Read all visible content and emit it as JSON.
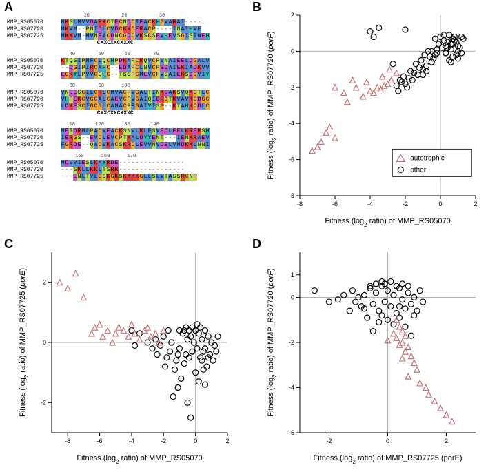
{
  "panel_labels": {
    "A": "A",
    "B": "B",
    "C": "C",
    "D": "D"
  },
  "alignment": {
    "names": [
      "MMP_RS05070",
      "MMP_RS07720",
      "MMP_RS07725"
    ],
    "motif1": "CXXCXXCXXXC",
    "motif2": "CXXCXXCXXXC",
    "ruler_positions": [
      10,
      20,
      30
    ],
    "blocks": [
      {
        "ruler": "        10           20           30",
        "rows": [
          "MKSLMVVDARKCTECNDCIEACKHGVARAI----",
          "MKVM--PNIDLCVDCKKCERACP----INAIHVF",
          "MKKVM-MVNEACDNCGDCVKSCSEVHEVSGISIWEH"
        ],
        "motif_after": true
      },
      {
        "ruler": "   40        50       60        70",
        "rows": [
          "KTQSIPMFCLQCHPDKAPCKQVCPVNAIEELDGALV",
          "--DGIPIRCMHC--EDAPCLNVCPEDAIEKIADKVV",
          "EGRYLPVVCQHC--TSSPCMEVCPVSAIEKSDGVIY"
        ]
      },
      {
        "ruler": "   80        90      100",
        "rows": [
          "VNEESCILCRLCMVACPVGALTINKDAKSVQKCTLC",
          "VHPEKCVGCALCAEVCPVGAIQIDRGTKVAVKCDGC",
          "LDKESCIGCGLCAMACPFGAIYISG--KTAHKCDLC"
        ],
        "motif_after": true
      },
      {
        "ruler": "  110       120      130       140",
        "rows": [
          "METDRMLPACVEACKSNVLKLFSVEDLEELKREKSH",
          "IERGS--EVCLEVCPTKALDYYENT---IENKRAEV",
          "FGRDE--QACVKACSKRCLEVVNVDELVMDKKLNNI"
        ]
      },
      {
        "ruler": "     150      160      170",
        "rows": [
          "MDVVIESLKMYRDE----------------",
          "---SKLLKKLTSRK----------------",
          "---ENLTVLGSKGKSKKKKGLLSLVTASSRCNP"
        ]
      }
    ]
  },
  "residue_colors": {
    "M": "#5b8fd4",
    "K": "#e24545",
    "S": "#b8e05a",
    "L": "#5b8fd4",
    "V": "#5b8fd4",
    "D": "#c85ac8",
    "A": "#5b8fd4",
    "R": "#e24545",
    "C": "#e8a948",
    "T": "#b8e05a",
    "E": "#c85ac8",
    "N": "#b8e05a",
    "I": "#5b8fd4",
    "H": "#2fb8b8",
    "G": "#f0a030",
    "P": "#d8d058",
    "F": "#5b8fd4",
    "Q": "#b8e05a",
    "Y": "#2fb8b8",
    "W": "#5b8fd4",
    "-": "none"
  },
  "plots": {
    "B": {
      "xlabel": "Fitness (log₂ ratio) of MMP_RS05070",
      "ylabel": "Fitness (log₂ ratio) of MMP_RS07720 (porF)",
      "xlim": [
        -8,
        2
      ],
      "ylim": [
        -8,
        2
      ],
      "xticks": [
        -8,
        -6,
        -4,
        -2,
        0,
        2
      ],
      "yticks": [
        -8,
        -6,
        -4,
        -2,
        0,
        2
      ],
      "legend": [
        {
          "label": "autotrophic",
          "marker": "triangle",
          "color": "#c77070"
        },
        {
          "label": "other",
          "marker": "circle",
          "color": "#000000"
        }
      ],
      "series": {
        "other": [
          [
            1.2,
            0.8
          ],
          [
            0.9,
            0.5
          ],
          [
            1.0,
            0.3
          ],
          [
            0.8,
            0.6
          ],
          [
            1.1,
            0.2
          ],
          [
            0.7,
            0.4
          ],
          [
            1.3,
            0.7
          ],
          [
            0.5,
            0.9
          ],
          [
            0.6,
            0.1
          ],
          [
            0.4,
            0.5
          ],
          [
            0.3,
            0.3
          ],
          [
            0.2,
            0.6
          ],
          [
            0.9,
            -0.2
          ],
          [
            1.0,
            -0.4
          ],
          [
            0.7,
            -0.3
          ],
          [
            0.5,
            -0.5
          ],
          [
            0.1,
            0.2
          ],
          [
            -0.1,
            0.4
          ],
          [
            -0.2,
            0.1
          ],
          [
            -0.3,
            -0.2
          ],
          [
            -0.4,
            -0.4
          ],
          [
            -0.5,
            -0.6
          ],
          [
            -0.6,
            -0.3
          ],
          [
            -0.8,
            -0.8
          ],
          [
            -1.0,
            -1.0
          ],
          [
            -1.2,
            -0.9
          ],
          [
            -1.3,
            -1.3
          ],
          [
            -1.5,
            -1.2
          ],
          [
            -1.6,
            -1.6
          ],
          [
            -1.8,
            -1.5
          ],
          [
            -2.0,
            -1.8
          ],
          [
            -2.2,
            -1.7
          ],
          [
            -1.9,
            -2.0
          ],
          [
            -2.4,
            -2.2
          ],
          [
            -2.5,
            -1.9
          ],
          [
            -2.7,
            -0.7
          ],
          [
            -3.5,
            1.3
          ],
          [
            -4.0,
            1.1
          ],
          [
            -3.8,
            0.8
          ],
          [
            -2.0,
            1.2
          ],
          [
            0.3,
            -0.1
          ],
          [
            0.6,
            -0.6
          ],
          [
            -0.7,
            0.0
          ],
          [
            -1.1,
            -0.5
          ],
          [
            -1.4,
            -0.7
          ],
          [
            0.0,
            0.8
          ],
          [
            0.2,
            0.9
          ],
          [
            -0.3,
            0.7
          ],
          [
            1.0,
            0.0
          ],
          [
            1.2,
            -0.1
          ],
          [
            0.8,
            0.8
          ],
          [
            0.7,
            0.7
          ],
          [
            0.6,
            0.4
          ],
          [
            0.4,
            0.2
          ],
          [
            0.3,
            -0.1
          ],
          [
            -0.2,
            -0.1
          ],
          [
            -0.5,
            0.0
          ],
          [
            -0.9,
            -0.2
          ],
          [
            -1.7,
            -1.1
          ],
          [
            -2.1,
            -1.4
          ],
          [
            -2.3,
            -1.6
          ],
          [
            -1.0,
            -1.3
          ],
          [
            -0.8,
            -1.1
          ]
        ],
        "autotrophic": [
          [
            -2.8,
            -1.6
          ],
          [
            -3.0,
            -1.8
          ],
          [
            -3.2,
            -1.9
          ],
          [
            -3.4,
            -2.1
          ],
          [
            -3.6,
            -2.0
          ],
          [
            -3.8,
            -2.3
          ],
          [
            -4.0,
            -2.2
          ],
          [
            -4.2,
            -1.7
          ],
          [
            -4.4,
            -2.5
          ],
          [
            -4.8,
            -2.0
          ],
          [
            -5.0,
            -1.6
          ],
          [
            -5.3,
            -2.8
          ],
          [
            -5.5,
            -2.3
          ],
          [
            -6.0,
            -2.0
          ],
          [
            -6.3,
            -4.2
          ],
          [
            -6.5,
            -4.5
          ],
          [
            -6.8,
            -5.0
          ],
          [
            -7.0,
            -5.3
          ],
          [
            -7.3,
            -5.5
          ],
          [
            -6.0,
            -4.8
          ],
          [
            -2.5,
            -1.2
          ],
          [
            -2.9,
            -1.0
          ],
          [
            -3.3,
            -1.4
          ]
        ]
      }
    },
    "C": {
      "xlabel": "Fitness (log₂ ratio) of MMP_RS05070",
      "ylabel": "Fitness (log₂ ratio) of MMP_RS07725 (porE)",
      "xlim": [
        -9,
        2
      ],
      "ylim": [
        -3,
        3
      ],
      "xticks": [
        -8,
        -6,
        -4,
        -2,
        0,
        2
      ],
      "yticks": [
        -2,
        0,
        2
      ],
      "series": {
        "other": [
          [
            0.8,
            0.2
          ],
          [
            0.6,
            0.4
          ],
          [
            0.5,
            -0.3
          ],
          [
            0.4,
            0.1
          ],
          [
            0.3,
            -0.5
          ],
          [
            0.2,
            0.3
          ],
          [
            0.1,
            -0.2
          ],
          [
            0.9,
            -0.4
          ],
          [
            1.0,
            0.0
          ],
          [
            1.1,
            -0.6
          ],
          [
            1.2,
            -0.1
          ],
          [
            0.7,
            -0.8
          ],
          [
            -0.1,
            0.0
          ],
          [
            -0.2,
            -0.3
          ],
          [
            -0.3,
            0.2
          ],
          [
            -0.4,
            -0.5
          ],
          [
            -0.5,
            0.1
          ],
          [
            -0.6,
            -0.4
          ],
          [
            -0.7,
            -0.7
          ],
          [
            -0.8,
            0.3
          ],
          [
            -1.0,
            -0.2
          ],
          [
            -1.2,
            -0.6
          ],
          [
            -1.3,
            -0.9
          ],
          [
            -1.5,
            0.0
          ],
          [
            -1.6,
            -0.3
          ],
          [
            -1.8,
            -0.5
          ],
          [
            -2.0,
            0.2
          ],
          [
            -2.2,
            -0.1
          ],
          [
            -2.4,
            -0.4
          ],
          [
            -2.5,
            0.1
          ],
          [
            -2.7,
            -0.2
          ],
          [
            -3.0,
            0.0
          ],
          [
            -3.5,
            0.3
          ],
          [
            -3.8,
            -0.1
          ],
          [
            -4.0,
            0.4
          ],
          [
            -0.9,
            -1.2
          ],
          [
            -1.1,
            -1.5
          ],
          [
            -1.4,
            -1.8
          ],
          [
            -0.5,
            -2.0
          ],
          [
            -0.3,
            -2.5
          ],
          [
            0.0,
            -1.0
          ],
          [
            0.2,
            -1.3
          ],
          [
            0.5,
            -0.9
          ],
          [
            0.6,
            -1.4
          ],
          [
            1.3,
            -0.3
          ],
          [
            1.4,
            0.2
          ],
          [
            0.3,
            0.5
          ],
          [
            -0.6,
            0.5
          ],
          [
            -1.7,
            0.4
          ],
          [
            -1.9,
            -0.8
          ],
          [
            0.0,
            0.4
          ],
          [
            0.1,
            0.6
          ],
          [
            -0.2,
            0.5
          ],
          [
            -0.4,
            0.4
          ],
          [
            -0.7,
            0.4
          ],
          [
            -1.0,
            0.4
          ],
          [
            0.4,
            -0.6
          ],
          [
            0.6,
            -0.2
          ],
          [
            0.8,
            -0.5
          ],
          [
            -1.1,
            -0.4
          ]
        ],
        "autotrophic": [
          [
            -8.5,
            2.0
          ],
          [
            -8.0,
            1.8
          ],
          [
            -7.5,
            2.3
          ],
          [
            -7.0,
            1.5
          ],
          [
            -6.5,
            0.3
          ],
          [
            -6.3,
            0.5
          ],
          [
            -6.0,
            0.6
          ],
          [
            -5.8,
            0.2
          ],
          [
            -5.5,
            0.4
          ],
          [
            -5.2,
            0.0
          ],
          [
            -5.0,
            0.3
          ],
          [
            -4.8,
            0.5
          ],
          [
            -4.5,
            0.4
          ],
          [
            -4.2,
            0.2
          ],
          [
            -4.0,
            0.6
          ],
          [
            -3.8,
            0.3
          ],
          [
            -3.5,
            0.1
          ],
          [
            -3.2,
            0.4
          ],
          [
            -3.0,
            0.5
          ],
          [
            -2.8,
            0.2
          ],
          [
            -2.5,
            0.3
          ],
          [
            -2.3,
            0.0
          ],
          [
            -2.0,
            0.4
          ]
        ]
      }
    },
    "D": {
      "xlabel": "Fitness (log₂ ratio) of MMP_RS07725 (porE)",
      "ylabel": "Fitness (log₂ ratio) of MMP_RS07720 (porF)",
      "xlim": [
        -3,
        3
      ],
      "ylim": [
        -6,
        2
      ],
      "xticks": [
        -2,
        0,
        2
      ],
      "yticks": [
        -6,
        -4,
        -2,
        0,
        1
      ],
      "series": {
        "other": [
          [
            -2.5,
            0.3
          ],
          [
            -2.0,
            -0.2
          ],
          [
            -1.5,
            0.1
          ],
          [
            -1.0,
            0.0
          ],
          [
            -0.8,
            -0.5
          ],
          [
            -0.6,
            0.4
          ],
          [
            -0.5,
            -0.3
          ],
          [
            -0.4,
            0.2
          ],
          [
            -0.3,
            -0.6
          ],
          [
            -0.2,
            0.5
          ],
          [
            -0.1,
            -0.2
          ],
          [
            0.0,
            0.3
          ],
          [
            0.1,
            -0.4
          ],
          [
            0.2,
            0.1
          ],
          [
            0.3,
            -0.7
          ],
          [
            0.4,
            0.4
          ],
          [
            0.5,
            -0.1
          ],
          [
            0.6,
            -0.5
          ],
          [
            0.7,
            0.2
          ],
          [
            0.8,
            -0.3
          ],
          [
            0.9,
            0.0
          ],
          [
            1.0,
            -0.6
          ],
          [
            1.1,
            0.3
          ],
          [
            1.2,
            -0.2
          ],
          [
            -0.7,
            -0.9
          ],
          [
            -0.9,
            -0.4
          ],
          [
            -1.2,
            0.3
          ],
          [
            -1.3,
            -0.6
          ],
          [
            -1.7,
            -0.1
          ],
          [
            0.0,
            -1.0
          ],
          [
            0.2,
            -1.2
          ],
          [
            0.4,
            -0.9
          ],
          [
            -0.3,
            -1.1
          ],
          [
            -0.5,
            -1.5
          ],
          [
            0.6,
            -1.3
          ],
          [
            -0.1,
            0.6
          ],
          [
            0.3,
            0.5
          ],
          [
            0.5,
            0.6
          ],
          [
            -0.4,
            0.6
          ],
          [
            -0.6,
            0.5
          ],
          [
            -0.2,
            0.7
          ],
          [
            0.1,
            0.7
          ],
          [
            0.7,
            0.5
          ],
          [
            0.9,
            -0.8
          ],
          [
            -0.8,
            0.1
          ],
          [
            -1.1,
            -0.2
          ],
          [
            0.8,
            -1.7
          ],
          [
            -0.2,
            -0.8
          ],
          [
            0.4,
            -0.4
          ]
        ],
        "autotrophic": [
          [
            0.3,
            -1.0
          ],
          [
            0.4,
            -1.3
          ],
          [
            0.5,
            -1.5
          ],
          [
            0.6,
            -1.7
          ],
          [
            0.3,
            -1.8
          ],
          [
            0.5,
            -2.0
          ],
          [
            0.7,
            -2.2
          ],
          [
            0.4,
            -2.1
          ],
          [
            0.6,
            -2.4
          ],
          [
            0.8,
            -2.6
          ],
          [
            0.5,
            -2.7
          ],
          [
            0.9,
            -2.9
          ],
          [
            1.0,
            -3.2
          ],
          [
            0.7,
            -3.5
          ],
          [
            1.1,
            -3.8
          ],
          [
            1.3,
            -4.0
          ],
          [
            1.4,
            -4.3
          ],
          [
            1.6,
            -4.6
          ],
          [
            1.8,
            -4.9
          ],
          [
            2.0,
            -5.2
          ],
          [
            2.2,
            -5.5
          ],
          [
            0.2,
            -1.6
          ],
          [
            0.0,
            -1.9
          ]
        ]
      }
    }
  },
  "styling": {
    "bg": "#ffffff",
    "axis_color": "#000000",
    "zero_line_color": "#b0b0b0",
    "circle_stroke": "#000000",
    "triangle_stroke": "#c77070",
    "marker_fill": "none",
    "marker_size": 4,
    "stroke_width": 1.2,
    "font_family": "Arial"
  }
}
